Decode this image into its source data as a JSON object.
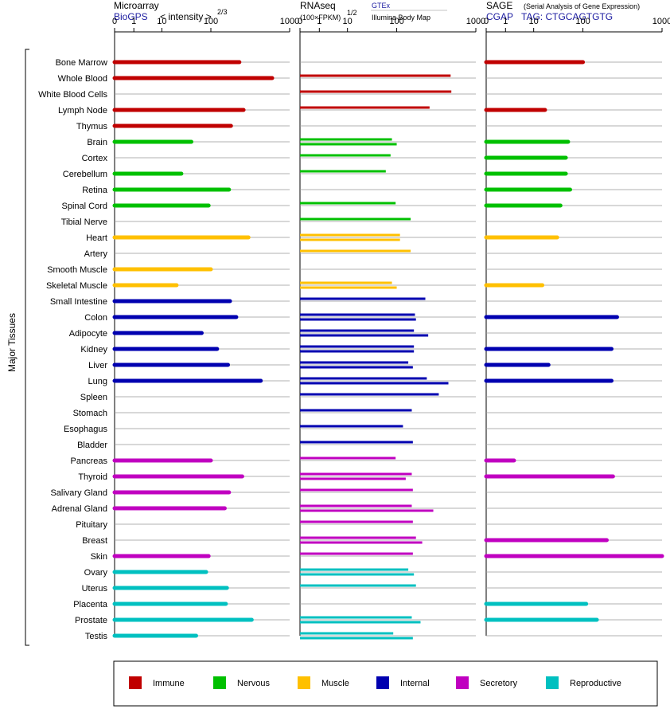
{
  "header": {
    "microarray_title": "Microarray",
    "microarray_source": "BioGPS",
    "microarray_unit": "< intensity >",
    "microarray_exp": "2/3",
    "rnaseq_title": "RNAseq",
    "rnaseq_unit": "(100×FPKM)",
    "rnaseq_exp": "1/2",
    "rnaseq_source1": "GTEx",
    "rnaseq_source2": "Illumina Body Map",
    "sage_title": "SAGE",
    "sage_subtitle": "(Serial Analysis of Gene Expression)",
    "sage_source": "CGAP",
    "sage_tag": "TAG: CTGCAGTGTG"
  },
  "chart_data": {
    "type": "bar",
    "ylabel": "Major Tissues",
    "panels": [
      {
        "name": "Microarray",
        "ticks": [
          "0",
          "1",
          "10",
          "100",
          "1000"
        ]
      },
      {
        "name": "RNAseq",
        "ticks": [
          "0",
          "1",
          "10",
          "100",
          "1000"
        ]
      },
      {
        "name": "SAGE",
        "ticks": [
          "0",
          "1",
          "10",
          "100",
          "1000"
        ]
      }
    ],
    "groups": [
      {
        "name": "Immune",
        "color": "#c00000"
      },
      {
        "name": "Nervous",
        "color": "#00c000"
      },
      {
        "name": "Muscle",
        "color": "#ffc000"
      },
      {
        "name": "Internal",
        "color": "#0000b0"
      },
      {
        "name": "Secretory",
        "color": "#c000c0"
      },
      {
        "name": "Reproductive",
        "color": "#00c0c0"
      }
    ],
    "tissues": [
      {
        "name": "Bone Marrow",
        "group": 0,
        "microarray": 230,
        "rnaseq": [],
        "sage": 100
      },
      {
        "name": "Whole Blood",
        "group": 0,
        "microarray": 600,
        "rnaseq": [
          480
        ],
        "sage": null
      },
      {
        "name": "White Blood Cells",
        "group": 0,
        "microarray": null,
        "rnaseq": [
          490
        ],
        "sage": null
      },
      {
        "name": "Lymph Node",
        "group": 0,
        "microarray": 260,
        "rnaseq": [
          260
        ],
        "sage": 17
      },
      {
        "name": "Thymus",
        "group": 0,
        "microarray": 180,
        "rnaseq": [],
        "sage": null
      },
      {
        "name": "Brain",
        "group": 1,
        "microarray": 40,
        "rnaseq": [
          80,
          100
        ],
        "sage": 50
      },
      {
        "name": "Cortex",
        "group": 1,
        "microarray": null,
        "rnaseq": [
          75
        ],
        "sage": 45
      },
      {
        "name": "Cerebellum",
        "group": 1,
        "microarray": 25,
        "rnaseq": [
          60
        ],
        "sage": 45
      },
      {
        "name": "Retina",
        "group": 1,
        "microarray": 170,
        "rnaseq": [],
        "sage": 55
      },
      {
        "name": "Spinal Cord",
        "group": 1,
        "microarray": 90,
        "rnaseq": [
          95
        ],
        "sage": 35
      },
      {
        "name": "Tibial Nerve",
        "group": 1,
        "microarray": null,
        "rnaseq": [
          150
        ],
        "sage": null
      },
      {
        "name": "Heart",
        "group": 2,
        "microarray": 300,
        "rnaseq": [
          110,
          110
        ],
        "sage": 30
      },
      {
        "name": "Artery",
        "group": 2,
        "microarray": null,
        "rnaseq": [
          150
        ],
        "sage": null
      },
      {
        "name": "Smooth Muscle",
        "group": 2,
        "microarray": 100,
        "rnaseq": [],
        "sage": null
      },
      {
        "name": "Skeletal Muscle",
        "group": 2,
        "microarray": 20,
        "rnaseq": [
          80,
          100
        ],
        "sage": 15
      },
      {
        "name": "Small Intestine",
        "group": 3,
        "microarray": 175,
        "rnaseq": [
          230
        ],
        "sage": null
      },
      {
        "name": "Colon",
        "group": 3,
        "microarray": 210,
        "rnaseq": [
          170,
          175
        ],
        "sage": 270
      },
      {
        "name": "Adipocyte",
        "group": 3,
        "microarray": 65,
        "rnaseq": [
          165,
          250
        ],
        "sage": null
      },
      {
        "name": "Kidney",
        "group": 3,
        "microarray": 120,
        "rnaseq": [
          165,
          165
        ],
        "sage": 230
      },
      {
        "name": "Liver",
        "group": 3,
        "microarray": 165,
        "rnaseq": [
          140,
          160
        ],
        "sage": 20
      },
      {
        "name": "Lung",
        "group": 3,
        "microarray": 430,
        "rnaseq": [
          240,
          450
        ],
        "sage": 230
      },
      {
        "name": "Spleen",
        "group": 3,
        "microarray": null,
        "rnaseq": [
          340
        ],
        "sage": null
      },
      {
        "name": "Stomach",
        "group": 3,
        "microarray": null,
        "rnaseq": [
          155
        ],
        "sage": null
      },
      {
        "name": "Esophagus",
        "group": 3,
        "microarray": null,
        "rnaseq": [
          120
        ],
        "sage": null
      },
      {
        "name": "Bladder",
        "group": 3,
        "microarray": null,
        "rnaseq": [
          160
        ],
        "sage": null
      },
      {
        "name": "Pancreas",
        "group": 4,
        "microarray": 100,
        "rnaseq": [
          95
        ],
        "sage": 2
      },
      {
        "name": "Thyroid",
        "group": 4,
        "microarray": 250,
        "rnaseq": [
          155,
          130
        ],
        "sage": 240
      },
      {
        "name": "Salivary Gland",
        "group": 4,
        "microarray": 170,
        "rnaseq": [
          160
        ],
        "sage": null
      },
      {
        "name": "Adrenal Gland",
        "group": 4,
        "microarray": 150,
        "rnaseq": [
          155,
          290
        ],
        "sage": null
      },
      {
        "name": "Pituitary",
        "group": 4,
        "microarray": null,
        "rnaseq": [
          160
        ],
        "sage": null
      },
      {
        "name": "Breast",
        "group": 4,
        "microarray": null,
        "rnaseq": [
          175,
          210
        ],
        "sage": 200
      },
      {
        "name": "Skin",
        "group": 4,
        "microarray": 90,
        "rnaseq": [
          160
        ],
        "sage": 1000
      },
      {
        "name": "Ovary",
        "group": 5,
        "microarray": 80,
        "rnaseq": [
          140,
          165
        ],
        "sage": null
      },
      {
        "name": "Uterus",
        "group": 5,
        "microarray": 160,
        "rnaseq": [
          175
        ],
        "sage": null
      },
      {
        "name": "Placenta",
        "group": 5,
        "microarray": 155,
        "rnaseq": [],
        "sage": 110
      },
      {
        "name": "Prostate",
        "group": 5,
        "microarray": 330,
        "rnaseq": [
          155,
          200
        ],
        "sage": 150
      },
      {
        "name": "Testis",
        "group": 5,
        "microarray": 50,
        "rnaseq": [
          85,
          160
        ],
        "sage": null
      }
    ]
  }
}
